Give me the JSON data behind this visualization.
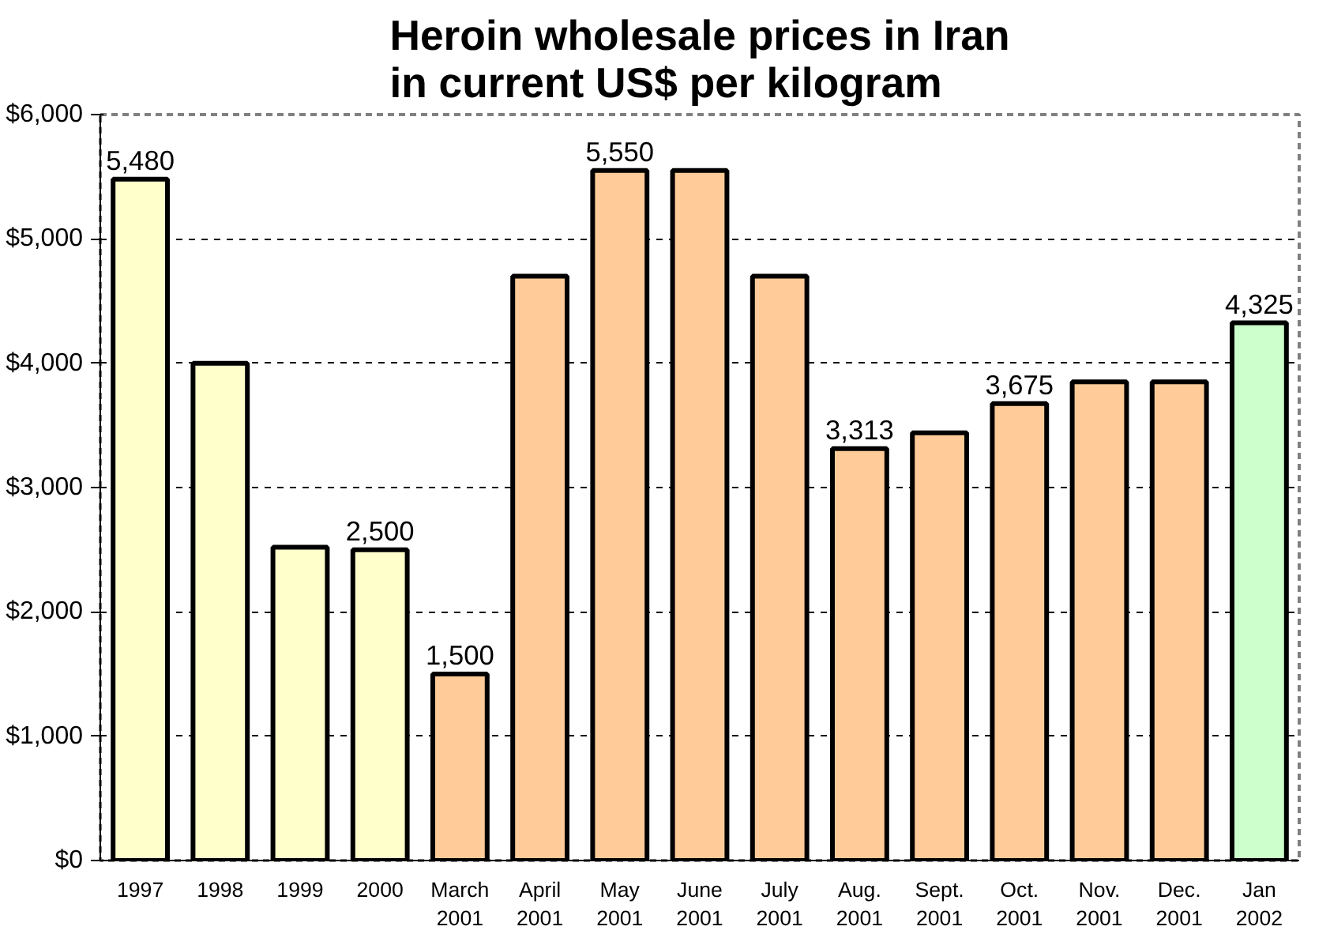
{
  "chart_data": {
    "type": "bar",
    "title": "Heroin wholesale prices in Iran\nin current US$ per kilogram",
    "categories": [
      "1997",
      "1998",
      "1999",
      "2000",
      "March\n2001",
      "April\n2001",
      "May\n2001",
      "June\n2001",
      "July\n2001",
      "Aug.\n2001",
      "Sept.\n2001",
      "Oct.\n2001",
      "Nov.\n2001",
      "Dec.\n2001",
      "Jan\n2002"
    ],
    "values": [
      5480,
      4000,
      2520,
      2500,
      1500,
      4700,
      5550,
      5550,
      4700,
      3313,
      3440,
      3675,
      3850,
      3850,
      4325
    ],
    "colors": [
      "#ffffcc",
      "#ffffcc",
      "#ffffcc",
      "#ffffcc",
      "#ffcc99",
      "#ffcc99",
      "#ffcc99",
      "#ffcc99",
      "#ffcc99",
      "#ffcc99",
      "#ffcc99",
      "#ffcc99",
      "#ffcc99",
      "#ffcc99",
      "#ccffcc"
    ],
    "value_labels": [
      "5,480",
      null,
      null,
      "2,500",
      "1,500",
      null,
      "5,550",
      null,
      null,
      "3,313",
      null,
      "3,675",
      null,
      null,
      "4,325"
    ],
    "ylim": [
      0,
      6000
    ],
    "yticks": [
      {
        "value": 0,
        "label": "$0"
      },
      {
        "value": 1000,
        "label": "$1,000"
      },
      {
        "value": 2000,
        "label": "$2,000"
      },
      {
        "value": 3000,
        "label": "$3,000"
      },
      {
        "value": 4000,
        "label": "$4,000"
      },
      {
        "value": 5000,
        "label": "$5,000"
      },
      {
        "value": 6000,
        "label": "$6,000"
      }
    ],
    "grid": "y"
  }
}
